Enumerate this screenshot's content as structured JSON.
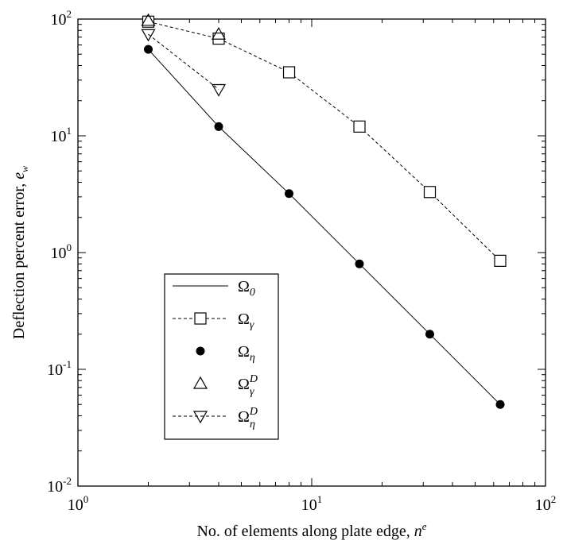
{
  "chart_data": {
    "type": "scatter",
    "title": "",
    "xlabel": "No. of elements along plate edge, ",
    "xlabel_sym": "n",
    "xlabel_sup": "e",
    "ylabel": "Deflection percent error, ",
    "ylabel_sym": "e",
    "ylabel_sub": "w",
    "x_scale": "log",
    "y_scale": "log",
    "xlim": [
      1,
      100
    ],
    "ylim": [
      0.01,
      100
    ],
    "grid": false,
    "legend_position": "bottom-left",
    "x_ticks": [
      {
        "value": 1,
        "base": "10",
        "exp": "0"
      },
      {
        "value": 10,
        "base": "10",
        "exp": "1"
      },
      {
        "value": 100,
        "base": "10",
        "exp": "2"
      }
    ],
    "y_ticks": [
      {
        "value": 0.01,
        "base": "10",
        "exp": "-2"
      },
      {
        "value": 0.1,
        "base": "10",
        "exp": "-1"
      },
      {
        "value": 1,
        "base": "10",
        "exp": "0"
      },
      {
        "value": 10,
        "base": "10",
        "exp": "1"
      },
      {
        "value": 100,
        "base": "10",
        "exp": "2"
      }
    ],
    "series": [
      {
        "name": "Ω0",
        "base": "Ω",
        "sub": "0",
        "sup": "",
        "marker": "none",
        "line": "solid",
        "x": [
          2,
          4,
          8,
          16,
          32,
          64
        ],
        "y": [
          55,
          12,
          3.2,
          0.8,
          0.2,
          0.05
        ]
      },
      {
        "name": "Ωγ",
        "base": "Ω",
        "sub": "γ",
        "sup": "",
        "marker": "square",
        "line": "dashed",
        "x": [
          2,
          4,
          8,
          16,
          32,
          64
        ],
        "y": [
          95,
          68,
          35,
          12,
          3.3,
          0.85
        ]
      },
      {
        "name": "Ωη",
        "base": "Ω",
        "sub": "η",
        "sup": "",
        "marker": "dot",
        "line": "none",
        "x": [
          2,
          4,
          8,
          16,
          32,
          64
        ],
        "y": [
          55,
          12,
          3.2,
          0.8,
          0.2,
          0.05
        ]
      },
      {
        "name": "ΩγD",
        "base": "Ω",
        "sub": "γ",
        "sup": "D",
        "marker": "triangle-up",
        "line": "none",
        "x": [
          2,
          4
        ],
        "y": [
          97,
          74
        ]
      },
      {
        "name": "ΩηD",
        "base": "Ω",
        "sub": "η",
        "sup": "D",
        "marker": "triangle-down",
        "line": "dashed",
        "x": [
          2,
          4
        ],
        "y": [
          74,
          25
        ]
      }
    ]
  }
}
